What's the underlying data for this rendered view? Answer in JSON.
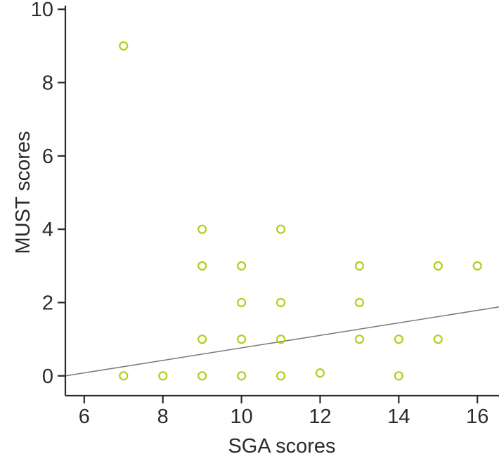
{
  "figure": {
    "background": "#ffffff"
  },
  "chart_data": {
    "type": "scatter",
    "title": "",
    "xlabel": "SGA scores",
    "ylabel": "MUST scores",
    "x_ticks": [
      6,
      8,
      10,
      12,
      14,
      16
    ],
    "y_ticks": [
      0,
      2,
      4,
      6,
      8,
      10
    ],
    "xlim": [
      5.52,
      16.55
    ],
    "ylim": [
      -0.54,
      10.1
    ],
    "grid": false,
    "legend": "none",
    "marker": {
      "shape": "open-circle",
      "color": "#b4cd19",
      "radius": 5.5,
      "stroke_width": 2.2
    },
    "points": [
      {
        "x": 7,
        "y": 0
      },
      {
        "x": 8,
        "y": 0
      },
      {
        "x": 9,
        "y": 0
      },
      {
        "x": 10,
        "y": 0
      },
      {
        "x": 11,
        "y": 0
      },
      {
        "x": 12,
        "y": 0,
        "dy": 0.08
      },
      {
        "x": 14,
        "y": 0
      },
      {
        "x": 9,
        "y": 1
      },
      {
        "x": 10,
        "y": 1
      },
      {
        "x": 11,
        "y": 1
      },
      {
        "x": 13,
        "y": 1
      },
      {
        "x": 14,
        "y": 1
      },
      {
        "x": 15,
        "y": 1
      },
      {
        "x": 10,
        "y": 2
      },
      {
        "x": 11,
        "y": 2
      },
      {
        "x": 13,
        "y": 2
      },
      {
        "x": 9,
        "y": 3
      },
      {
        "x": 10,
        "y": 3
      },
      {
        "x": 13,
        "y": 3
      },
      {
        "x": 15,
        "y": 3
      },
      {
        "x": 16,
        "y": 3
      },
      {
        "x": 9,
        "y": 4
      },
      {
        "x": 11,
        "y": 4
      },
      {
        "x": 7,
        "y": 9
      }
    ],
    "trend_line": {
      "x1": 5.52,
      "y1": 0.0,
      "x2": 16.55,
      "y2": 1.88,
      "color": "#7a7a7a",
      "width": 1.5
    },
    "axis_color": "#2b2b2b",
    "text_color": "#2b2b2b"
  }
}
